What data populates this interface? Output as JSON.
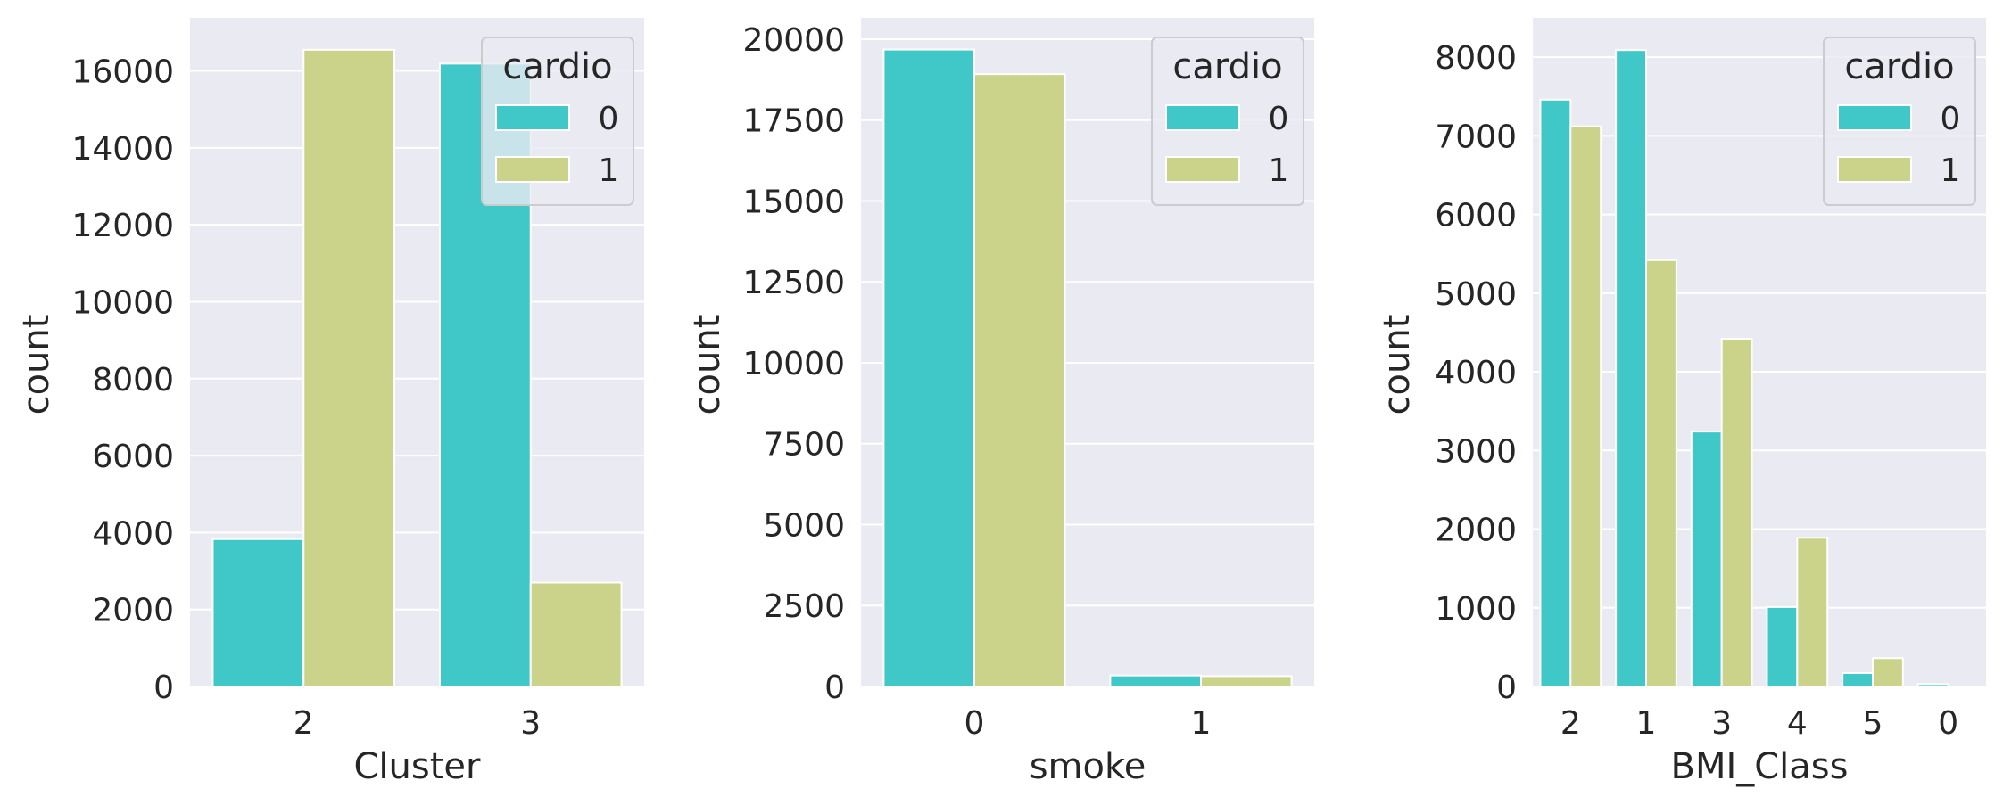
{
  "figure": {
    "background": "#ffffff",
    "panel_bg": "#eaeaf2",
    "grid_color": "#ffffff"
  },
  "chart_data": [
    {
      "type": "bar",
      "xlabel": "Cluster",
      "ylabel": "count",
      "categories": [
        "2",
        "3"
      ],
      "series": [
        {
          "name": "0",
          "color": "#40c8c8",
          "values": [
            3830,
            16190
          ]
        },
        {
          "name": "1",
          "color": "#cbd38a",
          "values": [
            16550,
            2700
          ]
        }
      ],
      "ylim": [
        0,
        17380
      ],
      "yticks": [
        0,
        2000,
        4000,
        6000,
        8000,
        10000,
        12000,
        14000,
        16000
      ],
      "grid": true,
      "legend": {
        "title": "cardio",
        "position": "top-right",
        "entries": [
          "0",
          "1"
        ]
      }
    },
    {
      "type": "bar",
      "xlabel": "smoke",
      "ylabel": "count",
      "categories": [
        "0",
        "1"
      ],
      "series": [
        {
          "name": "0",
          "color": "#40c8c8",
          "values": [
            19680,
            340
          ]
        },
        {
          "name": "1",
          "color": "#cbd38a",
          "values": [
            18920,
            320
          ]
        }
      ],
      "ylim": [
        0,
        20660
      ],
      "yticks": [
        0,
        2500,
        5000,
        7500,
        10000,
        12500,
        15000,
        17500,
        20000
      ],
      "grid": true,
      "legend": {
        "title": "cardio",
        "position": "top-right",
        "entries": [
          "0",
          "1"
        ]
      }
    },
    {
      "type": "bar",
      "xlabel": "BMI_Class",
      "ylabel": "count",
      "categories": [
        "2",
        "1",
        "3",
        "4",
        "5",
        "0"
      ],
      "series": [
        {
          "name": "0",
          "color": "#40c8c8",
          "values": [
            7460,
            8090,
            3240,
            1010,
            170,
            30
          ]
        },
        {
          "name": "1",
          "color": "#cbd38a",
          "values": [
            7120,
            5420,
            4420,
            1890,
            360,
            0
          ]
        }
      ],
      "ylim": [
        0,
        8500
      ],
      "yticks": [
        0,
        1000,
        2000,
        3000,
        4000,
        5000,
        6000,
        7000,
        8000
      ],
      "grid": true,
      "legend": {
        "title": "cardio",
        "position": "top-right",
        "entries": [
          "0",
          "1"
        ]
      }
    }
  ]
}
